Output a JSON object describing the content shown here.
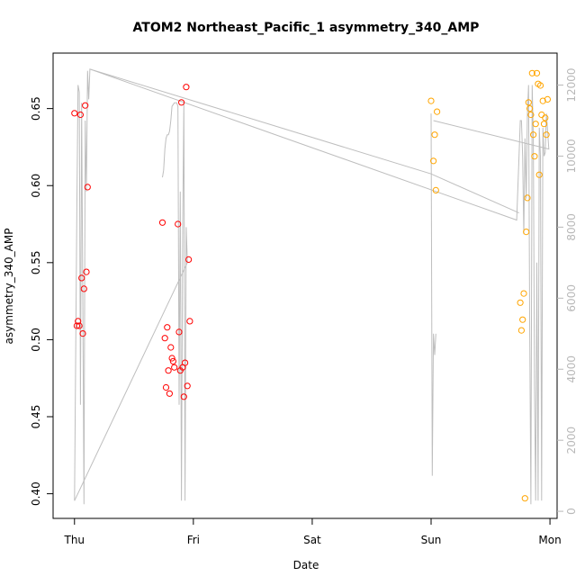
{
  "chart_data": {
    "type": "scatter",
    "title": "ATOM2 Northeast_Pacific_1 asymmetry_340_AMP",
    "xlabel": "Date",
    "ylabel": "asymmetry_340_AMP",
    "x_ticks": [
      "Thu",
      "Fri",
      "Sat",
      "Sun",
      "Mon"
    ],
    "x_range_days": [
      -0.18,
      4.06
    ],
    "y_left_ticks": [
      "0.40",
      "0.45",
      "0.50",
      "0.55",
      "0.60",
      "0.65"
    ],
    "y_left_range": [
      0.384,
      0.686
    ],
    "y_right_ticks": [
      "0",
      "2000",
      "4000",
      "6000",
      "8000",
      "10000",
      "12000"
    ],
    "y_right_range": [
      -200,
      12900
    ],
    "colors": {
      "red": "#ff0000",
      "orange": "#ffa500",
      "gray_line": "#bebebe",
      "axis": "#000000",
      "right_axis": "#b8b8b8"
    },
    "series": [
      {
        "color": "red",
        "points": [
          [
            0.0,
            0.647
          ],
          [
            0.02,
            0.509
          ],
          [
            0.03,
            0.512
          ],
          [
            0.04,
            0.509
          ],
          [
            0.05,
            0.646
          ],
          [
            0.06,
            0.54
          ],
          [
            0.07,
            0.504
          ],
          [
            0.08,
            0.533
          ],
          [
            0.09,
            0.652
          ],
          [
            0.1,
            0.544
          ],
          [
            0.11,
            0.599
          ],
          [
            0.74,
            0.576
          ],
          [
            0.76,
            0.501
          ],
          [
            0.77,
            0.469
          ],
          [
            0.78,
            0.508
          ],
          [
            0.79,
            0.48
          ],
          [
            0.8,
            0.465
          ],
          [
            0.81,
            0.495
          ],
          [
            0.82,
            0.488
          ],
          [
            0.83,
            0.486
          ],
          [
            0.84,
            0.482
          ],
          [
            0.87,
            0.575
          ],
          [
            0.88,
            0.505
          ],
          [
            0.89,
            0.48
          ],
          [
            0.9,
            0.654
          ],
          [
            0.91,
            0.482
          ],
          [
            0.92,
            0.463
          ],
          [
            0.93,
            0.485
          ],
          [
            0.94,
            0.664
          ],
          [
            0.95,
            0.47
          ],
          [
            0.96,
            0.552
          ],
          [
            0.97,
            0.512
          ]
        ]
      },
      {
        "color": "orange",
        "points": [
          [
            3.0,
            0.655
          ],
          [
            3.02,
            0.616
          ],
          [
            3.03,
            0.633
          ],
          [
            3.04,
            0.597
          ],
          [
            3.05,
            0.648
          ],
          [
            3.75,
            0.524
          ],
          [
            3.76,
            0.506
          ],
          [
            3.77,
            0.513
          ],
          [
            3.78,
            0.53
          ],
          [
            3.79,
            0.397
          ],
          [
            3.8,
            0.57
          ],
          [
            3.81,
            0.592
          ],
          [
            3.82,
            0.654
          ],
          [
            3.83,
            0.65
          ],
          [
            3.84,
            0.646
          ],
          [
            3.85,
            0.673
          ],
          [
            3.86,
            0.633
          ],
          [
            3.87,
            0.619
          ],
          [
            3.88,
            0.64
          ],
          [
            3.89,
            0.673
          ],
          [
            3.9,
            0.666
          ],
          [
            3.91,
            0.607
          ],
          [
            3.92,
            0.665
          ],
          [
            3.93,
            0.646
          ],
          [
            3.94,
            0.655
          ],
          [
            3.95,
            0.64
          ],
          [
            3.96,
            0.644
          ],
          [
            3.97,
            0.633
          ],
          [
            3.98,
            0.656
          ]
        ]
      },
      {
        "color": "gray_line",
        "axis": "right",
        "line": [
          [
            0.0,
            300
          ],
          [
            0.02,
            8500
          ],
          [
            0.03,
            12000
          ],
          [
            0.04,
            11800
          ],
          [
            0.05,
            3000
          ],
          [
            0.06,
            11500
          ],
          [
            0.07,
            6000
          ],
          [
            0.08,
            200
          ],
          [
            0.09,
            11000
          ],
          [
            0.1,
            9000
          ],
          [
            0.11,
            12400
          ],
          [
            0.12,
            11600
          ],
          [
            0.13,
            12450
          ],
          [
            3.72,
            8200
          ],
          [
            3.74,
            10000
          ],
          [
            3.75,
            11000
          ],
          [
            3.76,
            11000
          ],
          [
            3.77,
            10000
          ],
          [
            3.78,
            7800
          ],
          [
            3.79,
            10500
          ],
          [
            3.8,
            8800
          ],
          [
            3.81,
            11200
          ],
          [
            3.82,
            12000
          ],
          [
            3.83,
            5000
          ],
          [
            3.84,
            200
          ],
          [
            3.85,
            12000
          ],
          [
            3.86,
            10500
          ],
          [
            3.87,
            3500
          ],
          [
            3.88,
            300
          ],
          [
            3.89,
            7000
          ],
          [
            3.9,
            300
          ],
          [
            3.91,
            10800
          ],
          [
            3.92,
            10000
          ],
          [
            3.93,
            300
          ],
          [
            3.94,
            10800
          ],
          [
            3.95,
            10000
          ],
          [
            3.96,
            10100
          ],
          [
            3.97,
            11200
          ],
          [
            3.99,
            10200
          ],
          [
            3.02,
            11000
          ],
          [
            3.99,
            10200
          ]
        ]
      },
      {
        "color": "gray_line",
        "axis": "right",
        "line": [
          [
            0.74,
            9400
          ],
          [
            0.75,
            9600
          ],
          [
            0.76,
            10200
          ],
          [
            0.77,
            10500
          ],
          [
            0.78,
            10600
          ],
          [
            0.79,
            10600
          ],
          [
            0.8,
            10700
          ],
          [
            0.81,
            11000
          ],
          [
            0.82,
            11400
          ],
          [
            0.84,
            11500
          ],
          [
            0.86,
            11500
          ],
          [
            0.87,
            11400
          ],
          [
            0.88,
            3000
          ],
          [
            0.89,
            9000
          ],
          [
            0.9,
            300
          ],
          [
            0.91,
            8000
          ],
          [
            0.92,
            11500
          ],
          [
            0.93,
            300
          ],
          [
            0.94,
            8000
          ],
          [
            0.95,
            7000
          ],
          [
            0.0,
            300
          ]
        ]
      },
      {
        "color": "gray_line",
        "axis": "right",
        "line": [
          [
            3.0,
            11200
          ],
          [
            3.01,
            1000
          ],
          [
            3.02,
            5000
          ],
          [
            3.03,
            4400
          ],
          [
            3.04,
            5000
          ]
        ]
      },
      {
        "color": "gray_line",
        "axis": "right",
        "line": [
          [
            0.13,
            12450
          ],
          [
            3.0,
            9500
          ],
          [
            3.0,
            9500
          ],
          [
            3.74,
            8400
          ]
        ]
      }
    ]
  }
}
